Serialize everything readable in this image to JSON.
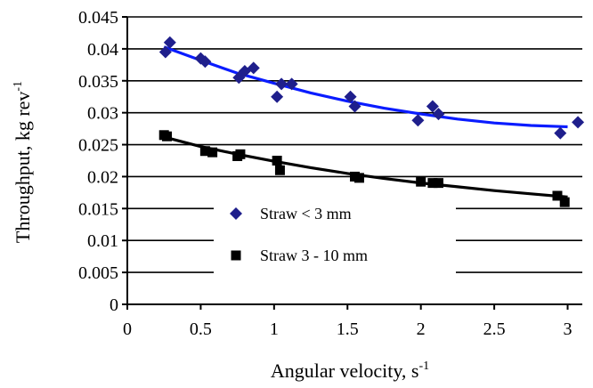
{
  "chart_data": {
    "type": "scatter",
    "title": "",
    "xlabel": "Angular velocity, s",
    "xlabel_sup": "-1",
    "ylabel": "Throughput, kg rev",
    "ylabel_sup": "-1",
    "xlim": [
      0,
      3.1
    ],
    "ylim": [
      0,
      0.045
    ],
    "x_ticks": [
      "0",
      "0.5",
      "1",
      "1.5",
      "2",
      "2.5",
      "3"
    ],
    "x_tick_values": [
      0,
      0.5,
      1,
      1.5,
      2,
      2.5,
      3
    ],
    "y_ticks": [
      "0",
      "0.005",
      "0.01",
      "0.015",
      "0.02",
      "0.025",
      "0.03",
      "0.035",
      "0.04",
      "0.045"
    ],
    "y_tick_values": [
      0,
      0.005,
      0.01,
      0.015,
      0.02,
      0.025,
      0.03,
      0.035,
      0.04,
      0.045
    ],
    "grid": "horizontal",
    "legend_position": "center-left inside plot",
    "series": [
      {
        "name": "Straw < 3 mm",
        "marker": "diamond",
        "color": "#1f1f8c",
        "trend_color": "#0a1cff",
        "points": [
          [
            0.26,
            0.0395
          ],
          [
            0.29,
            0.041
          ],
          [
            0.5,
            0.0385
          ],
          [
            0.53,
            0.038
          ],
          [
            0.76,
            0.0355
          ],
          [
            0.8,
            0.0365
          ],
          [
            0.86,
            0.037
          ],
          [
            1.02,
            0.0325
          ],
          [
            1.05,
            0.0345
          ],
          [
            1.12,
            0.0345
          ],
          [
            1.52,
            0.0325
          ],
          [
            1.55,
            0.031
          ],
          [
            1.98,
            0.0288
          ],
          [
            2.08,
            0.031
          ],
          [
            2.12,
            0.0298
          ],
          [
            2.95,
            0.0268
          ],
          [
            3.07,
            0.0285
          ]
        ],
        "trend": [
          [
            0.25,
            0.0403
          ],
          [
            0.5,
            0.0382
          ],
          [
            0.75,
            0.0362
          ],
          [
            1.0,
            0.0346
          ],
          [
            1.25,
            0.0331
          ],
          [
            1.5,
            0.0318
          ],
          [
            1.75,
            0.0307
          ],
          [
            2.0,
            0.0298
          ],
          [
            2.25,
            0.029
          ],
          [
            2.5,
            0.0284
          ],
          [
            2.75,
            0.028
          ],
          [
            3.0,
            0.0278
          ]
        ]
      },
      {
        "name": "Straw 3 - 10 mm",
        "marker": "square",
        "color": "#000000",
        "trend_color": "#000000",
        "points": [
          [
            0.25,
            0.0265
          ],
          [
            0.27,
            0.0263
          ],
          [
            0.53,
            0.024
          ],
          [
            0.58,
            0.0238
          ],
          [
            0.75,
            0.0232
          ],
          [
            0.77,
            0.0235
          ],
          [
            1.02,
            0.0225
          ],
          [
            1.04,
            0.021
          ],
          [
            1.55,
            0.02
          ],
          [
            1.58,
            0.0198
          ],
          [
            2.0,
            0.0192
          ],
          [
            2.08,
            0.019
          ],
          [
            2.12,
            0.019
          ],
          [
            2.93,
            0.017
          ],
          [
            2.98,
            0.016
          ]
        ],
        "trend": [
          [
            0.25,
            0.0262
          ],
          [
            0.5,
            0.0247
          ],
          [
            0.75,
            0.0235
          ],
          [
            1.0,
            0.0224
          ],
          [
            1.25,
            0.0214
          ],
          [
            1.5,
            0.0205
          ],
          [
            1.75,
            0.0197
          ],
          [
            2.0,
            0.019
          ],
          [
            2.25,
            0.0184
          ],
          [
            2.5,
            0.0178
          ],
          [
            2.75,
            0.0173
          ],
          [
            3.0,
            0.0168
          ]
        ]
      }
    ],
    "legend": {
      "items": [
        {
          "label": "Straw < 3 mm",
          "marker": "diamond",
          "color": "#1f1f8c"
        },
        {
          "label": "Straw 3 - 10 mm",
          "marker": "square",
          "color": "#000000"
        }
      ]
    }
  }
}
